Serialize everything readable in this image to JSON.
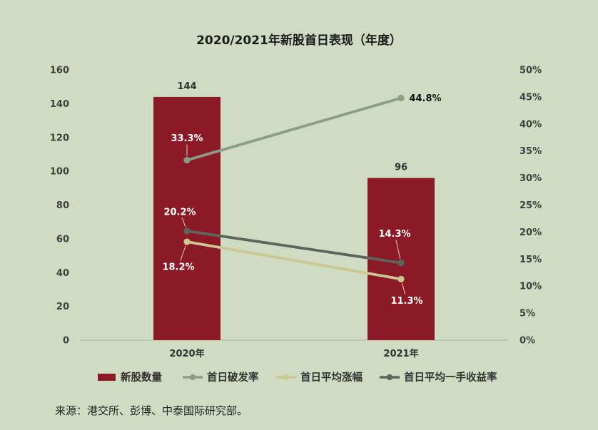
{
  "chart_data": {
    "type": "bar",
    "title": "2020/2021年新股首日表现（年度）",
    "categories": [
      "2020年",
      "2021年"
    ],
    "y_left": {
      "min": 0,
      "max": 160,
      "ticks": [
        0,
        20,
        40,
        60,
        80,
        100,
        120,
        140,
        160
      ],
      "tick_labels": [
        "0",
        "20",
        "40",
        "60",
        "80",
        "100",
        "120",
        "140",
        "160"
      ]
    },
    "y_right": {
      "min": 0,
      "max": 50,
      "ticks": [
        0,
        5,
        10,
        15,
        20,
        25,
        30,
        35,
        40,
        45,
        50
      ],
      "tick_labels": [
        "0%",
        "5%",
        "10%",
        "15%",
        "20%",
        "25%",
        "30%",
        "35%",
        "40%",
        "45%",
        "50%"
      ]
    },
    "series": [
      {
        "name": "新股数量",
        "type": "bar",
        "axis": "left",
        "values": [
          144,
          96
        ],
        "data_labels": [
          "144",
          "96"
        ],
        "color": "#8b1a26"
      },
      {
        "name": "首日破发率",
        "type": "line",
        "axis": "right",
        "values": [
          33.3,
          44.8
        ],
        "data_labels": [
          "33.3%",
          "44.8%"
        ],
        "color": "#8d9b89"
      },
      {
        "name": "首日平均涨幅",
        "type": "line",
        "axis": "right",
        "values": [
          18.2,
          11.3
        ],
        "data_labels": [
          "18.2%",
          "11.3%"
        ],
        "color": "#cdc793"
      },
      {
        "name": "首日平均一手收益率",
        "type": "line",
        "axis": "right",
        "values": [
          20.2,
          14.3
        ],
        "data_labels": [
          "20.2%",
          "14.3%"
        ],
        "color": "#5d635d"
      }
    ],
    "legend": "bottom",
    "grid": false
  },
  "source": "来源：港交所、彭博、中泰国际研究部。",
  "colors": {
    "background": "#cfdcc3",
    "axis": "#a9b2a1"
  }
}
